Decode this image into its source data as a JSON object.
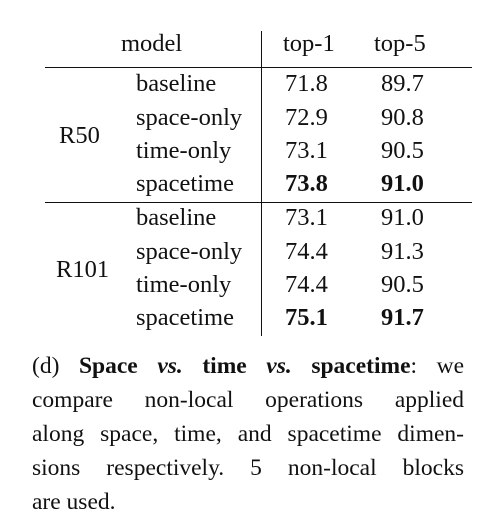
{
  "table": {
    "headers": {
      "model": "model",
      "top1": "top-1",
      "top5": "top-5"
    },
    "groups": [
      {
        "backbone": "R50",
        "rows": [
          {
            "model": "baseline",
            "top1": "71.8",
            "top5": "89.7"
          },
          {
            "model": "space-only",
            "top1": "72.9",
            "top5": "90.8"
          },
          {
            "model": "time-only",
            "top1": "73.1",
            "top5": "90.5"
          },
          {
            "model": "spacetime",
            "top1": "73.8",
            "top5": "91.0"
          }
        ]
      },
      {
        "backbone": "R101",
        "rows": [
          {
            "model": "baseline",
            "top1": "73.1",
            "top5": "91.0"
          },
          {
            "model": "space-only",
            "top1": "74.4",
            "top5": "91.3"
          },
          {
            "model": "time-only",
            "top1": "74.4",
            "top5": "90.5"
          },
          {
            "model": "spacetime",
            "top1": "75.1",
            "top5": "91.7"
          }
        ]
      }
    ]
  },
  "caption": {
    "label": "(d)",
    "title_part1": "Space",
    "vs1": "vs.",
    "title_part2": "time",
    "vs2": "vs.",
    "title_part3": "spacetime",
    "colon": ":",
    "line1_rest": " we",
    "line2": "compare non-local operations applied",
    "line3": "along space, time, and spacetime dimen-",
    "line4": "sions respectively. 5 non-local blocks",
    "line5": "are used."
  }
}
